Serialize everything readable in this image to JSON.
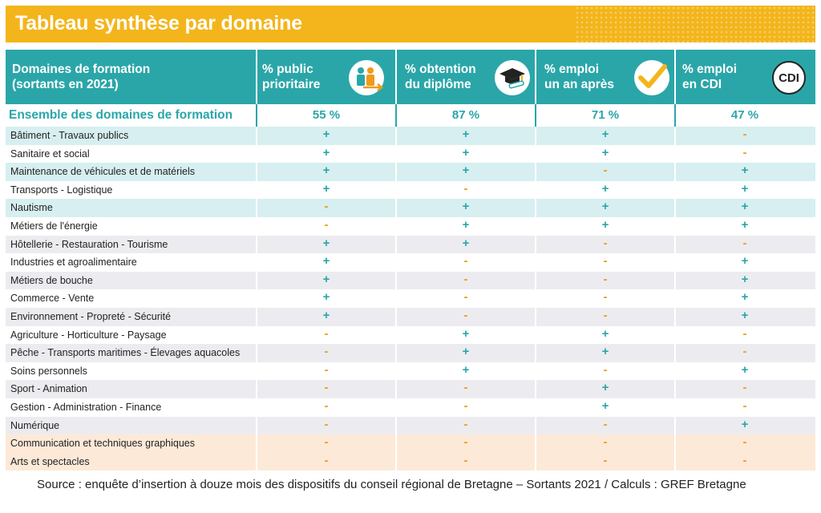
{
  "title": "Tableau synthèse par domaine",
  "header": {
    "col0": [
      "Domaines de formation",
      "(sortants en 2021)"
    ],
    "col1": [
      "% public",
      "prioritaire"
    ],
    "col2": [
      "% obtention",
      "du diplôme"
    ],
    "col3": [
      "% emploi",
      "un an après"
    ],
    "col4": [
      "% emploi",
      "en CDI"
    ],
    "cdi_icon_text": "CDI"
  },
  "icons": [
    "people-arrow-icon",
    "graduation-cap-diploma-icon",
    "checkmark-icon",
    "cdi-badge-icon"
  ],
  "colors": {
    "teal": "#2aa6a9",
    "orange": "#f09a1a",
    "yellow": "#f3b51b"
  },
  "ensemble": {
    "label": "Ensemble des domaines de formation",
    "values": [
      "55 %",
      "87 %",
      "71 %",
      "47 %"
    ]
  },
  "rows": [
    {
      "label": "Bâtiment - Travaux publics",
      "v": [
        "+",
        "+",
        "+",
        "-"
      ],
      "bg": "teal"
    },
    {
      "label": "Sanitaire et social",
      "v": [
        "+",
        "+",
        "+",
        "-"
      ],
      "bg": "white"
    },
    {
      "label": "Maintenance de véhicules et de matériels",
      "v": [
        "+",
        "+",
        "-",
        "+"
      ],
      "bg": "teal"
    },
    {
      "label": "Transports - Logistique",
      "v": [
        "+",
        "-",
        "+",
        "+"
      ],
      "bg": "white"
    },
    {
      "label": "Nautisme",
      "v": [
        "-",
        "+",
        "+",
        "+"
      ],
      "bg": "teal"
    },
    {
      "label": "Métiers de l'énergie",
      "v": [
        "-",
        "+",
        "+",
        "+"
      ],
      "bg": "white"
    },
    {
      "label": "Hôtellerie - Restauration - Tourisme",
      "v": [
        "+",
        "+",
        "-",
        "-"
      ],
      "bg": "gray"
    },
    {
      "label": "Industries et agroalimentaire",
      "v": [
        "+",
        "-",
        "-",
        "+"
      ],
      "bg": "white"
    },
    {
      "label": "Métiers de bouche",
      "v": [
        "+",
        "-",
        "-",
        "+"
      ],
      "bg": "gray"
    },
    {
      "label": "Commerce - Vente",
      "v": [
        "+",
        "-",
        "-",
        "+"
      ],
      "bg": "white"
    },
    {
      "label": "Environnement - Propreté - Sécurité",
      "v": [
        "+",
        "-",
        "-",
        "+"
      ],
      "bg": "gray"
    },
    {
      "label": "Agriculture - Horticulture - Paysage",
      "v": [
        "-",
        "+",
        "+",
        "-"
      ],
      "bg": "white"
    },
    {
      "label": "Pêche - Transports maritimes - Élevages aquacoles",
      "v": [
        "-",
        "+",
        "+",
        "-"
      ],
      "bg": "gray"
    },
    {
      "label": "Soins personnels",
      "v": [
        "-",
        "+",
        "-",
        "+"
      ],
      "bg": "white"
    },
    {
      "label": "Sport - Animation",
      "v": [
        "-",
        "-",
        "+",
        "-"
      ],
      "bg": "gray"
    },
    {
      "label": "Gestion - Administration - Finance",
      "v": [
        "-",
        "-",
        "+",
        "-"
      ],
      "bg": "white"
    },
    {
      "label": "Numérique",
      "v": [
        "-",
        "-",
        "-",
        "+"
      ],
      "bg": "gray"
    },
    {
      "label": "Communication et techniques graphiques",
      "v": [
        "-",
        "-",
        "-",
        "-"
      ],
      "bg": "peach"
    },
    {
      "label": "Arts et spectacles",
      "v": [
        "-",
        "-",
        "-",
        "-"
      ],
      "bg": "peach"
    }
  ],
  "source": "Source : enquête d’insertion à douze mois des dispositifs du conseil régional de Bretagne – Sortants 2021 / Calculs : GREF Bretagne"
}
